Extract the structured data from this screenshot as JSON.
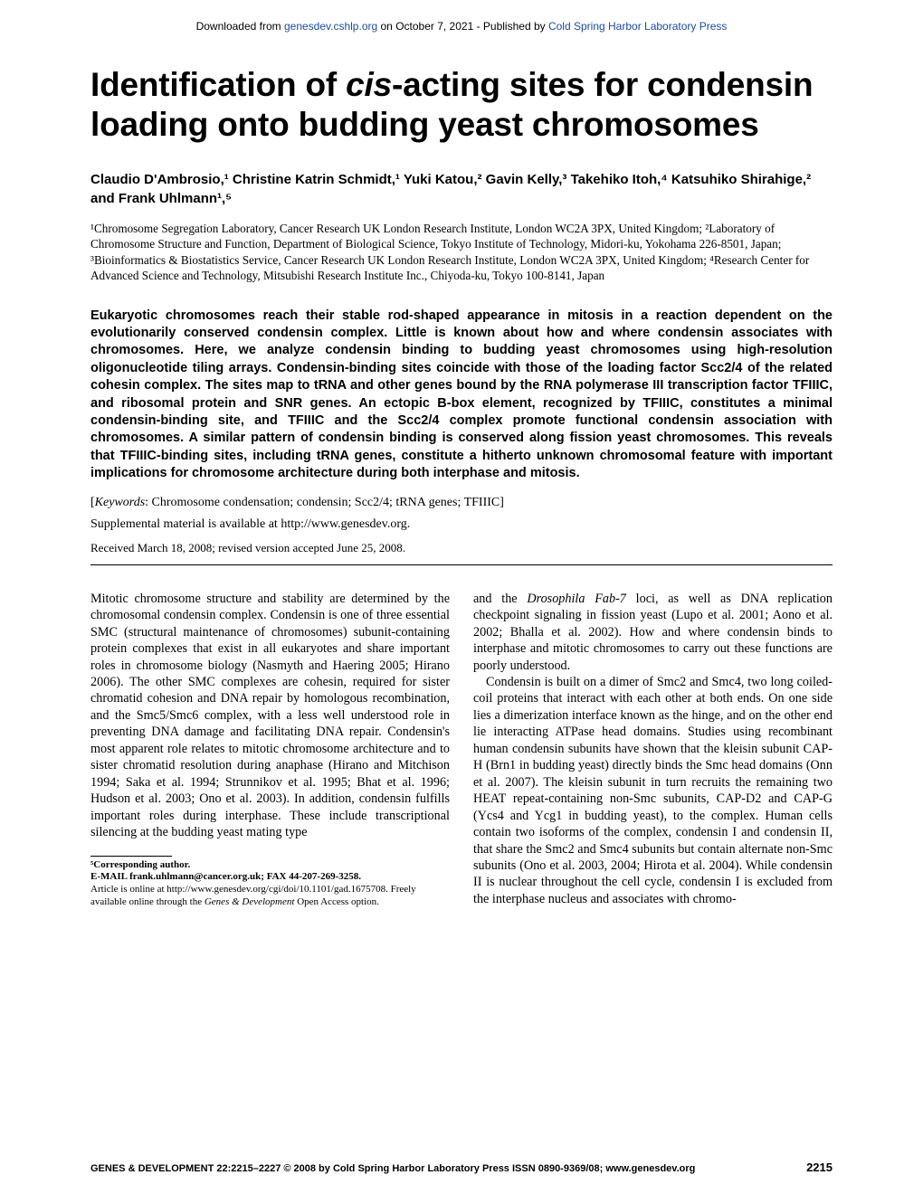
{
  "banner": {
    "prefix": "Downloaded from ",
    "link1_text": "genesdev.cshlp.org",
    "middle": " on October 7, 2021 - Published by ",
    "link2_text": "Cold Spring Harbor Laboratory Press"
  },
  "title_parts": {
    "pre": "Identification of ",
    "cis": "cis",
    "post": "-acting sites for condensin loading onto budding yeast chromosomes"
  },
  "authors_line": "Claudio D'Ambrosio,¹ Christine Katrin Schmidt,¹ Yuki Katou,² Gavin Kelly,³ Takehiko Itoh,⁴ Katsuhiko Shirahige,² and Frank Uhlmann¹,⁵",
  "affiliations": "¹Chromosome Segregation Laboratory, Cancer Research UK London Research Institute, London WC2A 3PX, United Kingdom; ²Laboratory of Chromosome Structure and Function, Department of Biological Science, Tokyo Institute of Technology, Midori-ku, Yokohama 226-8501, Japan; ³Bioinformatics & Biostatistics Service, Cancer Research UK London Research Institute, London WC2A 3PX, United Kingdom; ⁴Research Center for Advanced Science and Technology, Mitsubishi Research Institute Inc., Chiyoda-ku, Tokyo 100-8141, Japan",
  "abstract": "Eukaryotic chromosomes reach their stable rod-shaped appearance in mitosis in a reaction dependent on the evolutionarily conserved condensin complex. Little is known about how and where condensin associates with chromosomes. Here, we analyze condensin binding to budding yeast chromosomes using high-resolution oligonucleotide tiling arrays. Condensin-binding sites coincide with those of the loading factor Scc2/4 of the related cohesin complex. The sites map to tRNA and other genes bound by the RNA polymerase III transcription factor TFIIIC, and ribosomal protein and SNR genes. An ectopic B-box element, recognized by TFIIIC, constitutes a minimal condensin-binding site, and TFIIIC and the Scc2/4 complex promote functional condensin association with chromosomes. A similar pattern of condensin binding is conserved along fission yeast chromosomes. This reveals that TFIIIC-binding sites, including tRNA genes, constitute a hitherto unknown chromosomal feature with important implications for chromosome architecture during both interphase and mitosis.",
  "keywords": {
    "label": "Keywords",
    "text": ": Chromosome condensation; condensin; Scc2/4; tRNA genes; TFIIIC]"
  },
  "supplementary": "Supplemental material is available at http://www.genesdev.org.",
  "received": "Received March 18, 2008; revised version accepted June 25, 2008.",
  "body": {
    "left_p1": "Mitotic chromosome structure and stability are determined by the chromosomal condensin complex. Condensin is one of three essential SMC (structural maintenance of chromosomes) subunit-containing protein complexes that exist in all eukaryotes and share important roles in chromosome biology (Nasmyth and Haering 2005; Hirano 2006). The other SMC complexes are cohesin, required for sister chromatid cohesion and DNA repair by homologous recombination, and the Smc5/Smc6 complex, with a less well understood role in preventing DNA damage and facilitating DNA repair. Condensin's most apparent role relates to mitotic chromosome architecture and to sister chromatid resolution during anaphase (Hirano and Mitchison 1994; Saka et al. 1994; Strunnikov et al. 1995; Bhat et al. 1996; Hudson et al. 2003; Ono et al. 2003). In addition, condensin fulfills important roles during interphase. These include transcriptional silencing at the budding yeast mating type",
    "right_p1_pre": "and the ",
    "right_p1_ital": "Drosophila Fab-7",
    "right_p1_post": " loci, as well as DNA replication checkpoint signaling in fission yeast (Lupo et al. 2001; Aono et al. 2002; Bhalla et al. 2002). How and where condensin binds to interphase and mitotic chromosomes to carry out these functions are poorly understood.",
    "right_p2": "Condensin is built on a dimer of Smc2 and Smc4, two long coiled-coil proteins that interact with each other at both ends. On one side lies a dimerization interface known as the hinge, and on the other end lie interacting ATPase head domains. Studies using recombinant human condensin subunits have shown that the kleisin subunit CAP-H (Brn1 in budding yeast) directly binds the Smc head domains (Onn et al. 2007). The kleisin subunit in turn recruits the remaining two HEAT repeat-containing non-Smc subunits, CAP-D2 and CAP-G (Ycs4 and Ycg1 in budding yeast), to the complex. Human cells contain two isoforms of the complex, condensin I and condensin II, that share the Smc2 and Smc4 subunits but contain alternate non-Smc subunits (Ono et al. 2003, 2004; Hirota et al. 2004). While condensin II is nuclear throughout the cell cycle, condensin I is excluded from the interphase nucleus and associates with chromo-"
  },
  "corresponding": {
    "line1": "⁵Corresponding author.",
    "line2": "E-MAIL frank.uhlmann@cancer.org.uk; FAX 44-207-269-3258.",
    "line3_pre": "Article is online at http://www.genesdev.org/cgi/doi/10.1101/gad.1675708. Freely available online through the ",
    "line3_ital": "Genes & Development",
    "line3_post": " Open Access option."
  },
  "footer": {
    "left": "GENES & DEVELOPMENT 22:2215–2227 © 2008 by Cold Spring Harbor Laboratory Press ISSN 0890-9369/08; www.genesdev.org",
    "page": "2215"
  },
  "colors": {
    "link": "#1a4ba8",
    "text": "#000000",
    "background": "#ffffff"
  }
}
